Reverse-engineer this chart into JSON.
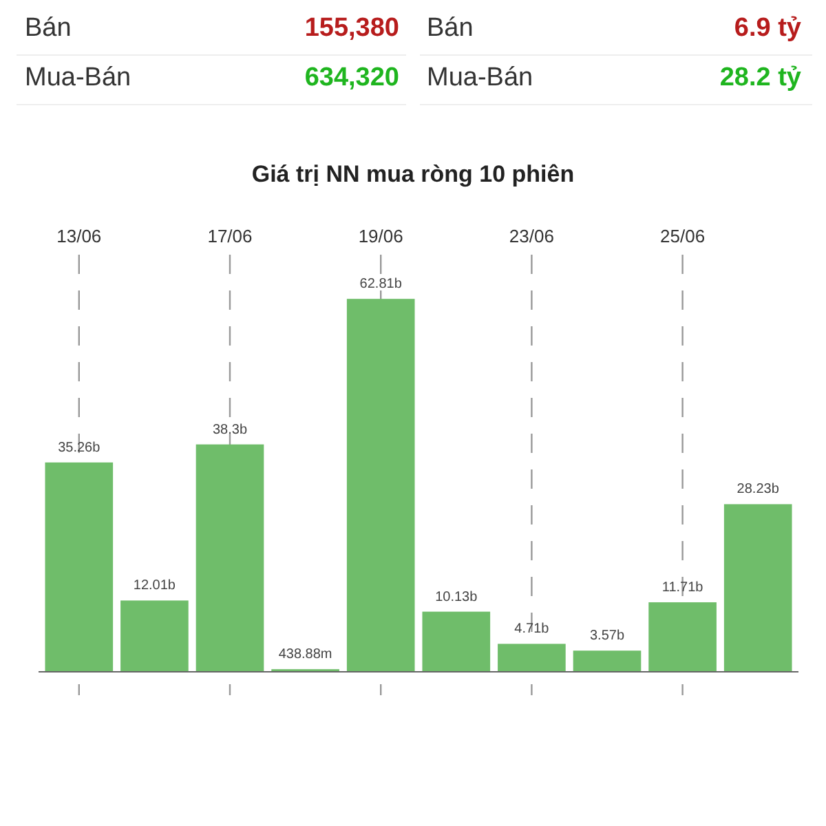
{
  "chart_data": {
    "type": "bar",
    "title": "Giá trị NN mua ròng 10 phiên",
    "categories": [
      "13/06",
      null,
      "17/06",
      null,
      "19/06",
      null,
      "23/06",
      null,
      "25/06",
      null
    ],
    "values": [
      35260000000,
      12010000000,
      38300000000,
      438880000,
      62810000000,
      10130000000,
      4710000000,
      3570000000,
      11710000000,
      28230000000
    ],
    "value_labels": [
      "35.26b",
      "12.01b",
      "38.3b",
      "438.88m",
      "62.81b",
      "10.13b",
      "4.71b",
      "3.57b",
      "11.71b",
      "28.23b"
    ],
    "color": "#6fbd6a",
    "grid": "x",
    "annotations": [
      "Bán",
      "155,380",
      "Mua-Bán",
      "634,320",
      "Bán",
      "6.9 tỷ",
      "Mua-Bán",
      "28.2 tỷ"
    ]
  }
}
